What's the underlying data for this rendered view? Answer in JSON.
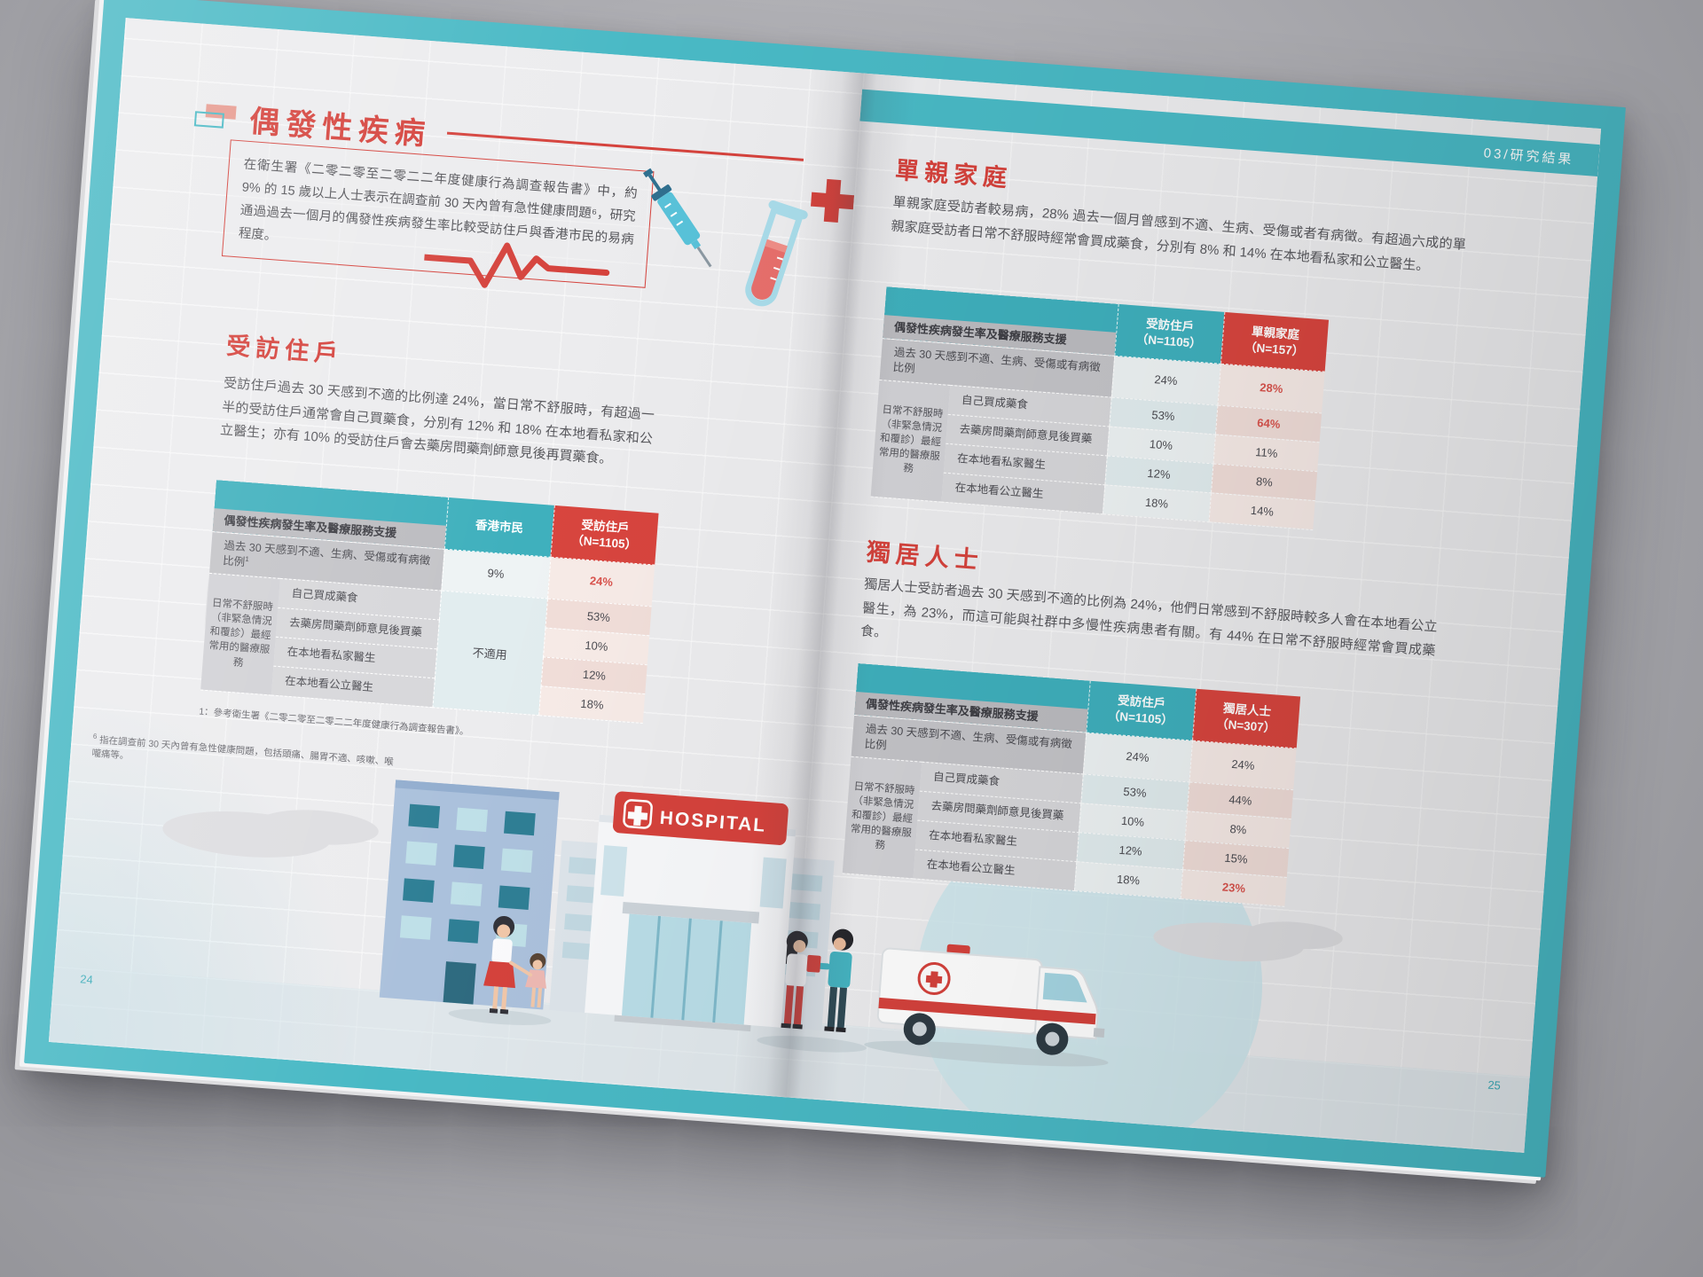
{
  "meta": {
    "chapter_label": "03/研究結果",
    "colors": {
      "teal": "#49b9c5",
      "table_teal": "#3fb0bd",
      "red": "#d5423c",
      "table_red": "#d8453e",
      "highlight_red": "#d9534d",
      "band_gray": "#bcbcc0",
      "page_bg": "#ececee"
    }
  },
  "left_page": {
    "title": "偶發性疾病",
    "intro": "在衛生署《二零二零至二零二二年度健康行為調查報告書》中，約 9% 的 15 歲以上人士表示在調查前 30 天內曾有急性健康問題⁶，研究通過過去一個月的偶發性疾病發生率比較受訪住戶與香港市民的易病程度。",
    "section_heading": "受訪住戶",
    "section_body": "受訪住戶過去 30 天感到不適的比例達 24%，當日常不舒服時，有超過一半的受訪住戶通常會自己買藥食，分別有 12% 和 18% 在本地看私家和公立醫生；亦有 10% 的受訪住戶會去藥房問藥劑師意見後再買藥食。",
    "table_footnote": "1：參考衛生署《二零二零至二零二二年度健康行為調查報告書》。",
    "page_footnote_marker": "6",
    "page_footnote": "指在調查前 30 天內曾有急性健康問題，包括頭痛、腸胃不適、咳嗽、喉嚨痛等。",
    "page_number": "24"
  },
  "right_page": {
    "single_parent": {
      "heading": "單親家庭",
      "body": "單親家庭受訪者較易病，28% 過去一個月曾感到不適、生病、受傷或者有病徵。有超過六成的單親家庭受訪者日常不舒服時經常會買成藥食，分別有 8% 和 14% 在本地看私家和公立醫生。"
    },
    "living_alone": {
      "heading": "獨居人士",
      "body": "獨居人士受訪者過去 30 天感到不適的比例為 24%，他們日常感到不舒服時較多人會在本地看公立醫生，為 23%，而這可能與社群中多慢性疾病患者有關。有 44% 在日常不舒服時經常會買成藥食。"
    },
    "page_number": "25"
  },
  "tables": [
    {
      "header_label": "偶發性疾病發生率及醫療服務支援",
      "columns": [
        {
          "lines": [
            "香港市民"
          ]
        },
        {
          "lines": [
            "受訪住戶",
            "（N=1105）"
          ]
        }
      ],
      "group_label": "日常不舒服時（非緊急情況和覆診）最經常用的醫療服務",
      "rows": [
        {
          "label": "過去 30 天感到不適、生病、受傷或有病徵比例",
          "sup": "1",
          "c1": "9%",
          "c2": "24%",
          "c2_red": true
        },
        {
          "label": "自己買成藥食",
          "c1": "不適用",
          "c1_span": 4,
          "c2": "53%"
        },
        {
          "label": "去藥房問藥劑師意見後買藥",
          "c2": "10%"
        },
        {
          "label": "在本地看私家醫生",
          "c2": "12%"
        },
        {
          "label": "在本地看公立醫生",
          "c2": "18%"
        }
      ]
    },
    {
      "header_label": "偶發性疾病發生率及醫療服務支援",
      "columns": [
        {
          "lines": [
            "受訪住戶",
            "（N=1105）"
          ]
        },
        {
          "lines": [
            "單親家庭",
            "（N=157）"
          ]
        }
      ],
      "group_label": "日常不舒服時（非緊急情況和覆診）最經常用的醫療服務",
      "rows": [
        {
          "label": "過去 30 天感到不適、生病、受傷或有病徵比例",
          "c1": "24%",
          "c2": "28%",
          "c2_red": true
        },
        {
          "label": "自己買成藥食",
          "c1": "53%",
          "c2": "64%",
          "c2_red": true
        },
        {
          "label": "去藥房問藥劑師意見後買藥",
          "c1": "10%",
          "c2": "11%"
        },
        {
          "label": "在本地看私家醫生",
          "c1": "12%",
          "c2": "8%"
        },
        {
          "label": "在本地看公立醫生",
          "c1": "18%",
          "c2": "14%"
        }
      ]
    },
    {
      "header_label": "偶發性疾病發生率及醫療服務支援",
      "columns": [
        {
          "lines": [
            "受訪住戶",
            "（N=1105）"
          ]
        },
        {
          "lines": [
            "獨居人士",
            "（N=307）"
          ]
        }
      ],
      "group_label": "日常不舒服時（非緊急情況和覆診）最經常用的醫療服務",
      "rows": [
        {
          "label": "過去 30 天感到不適、生病、受傷或有病徵比例",
          "c1": "24%",
          "c2": "24%"
        },
        {
          "label": "自己買成藥食",
          "c1": "53%",
          "c2": "44%"
        },
        {
          "label": "去藥房問藥劑師意見後買藥",
          "c1": "10%",
          "c2": "8%"
        },
        {
          "label": "在本地看私家醫生",
          "c1": "12%",
          "c2": "15%"
        },
        {
          "label": "在本地看公立醫生",
          "c1": "18%",
          "c2": "23%",
          "c2_red": true
        }
      ]
    }
  ],
  "illustration": {
    "hospital_sign": "HOSPITAL"
  }
}
